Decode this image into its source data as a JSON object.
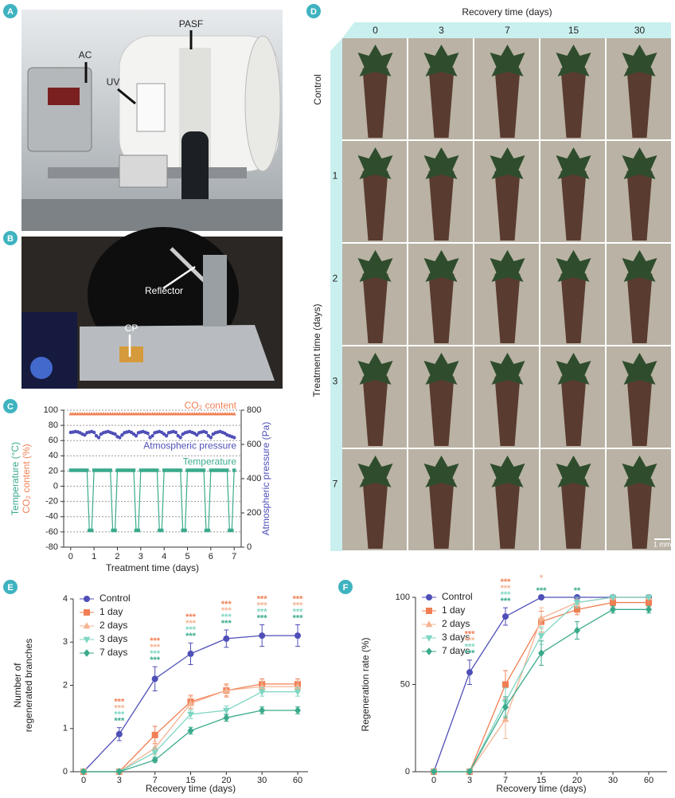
{
  "panel_labels": [
    "A",
    "B",
    "C",
    "D",
    "E",
    "F"
  ],
  "photo_a": {
    "labels": [
      "PASF",
      "AC",
      "UV"
    ]
  },
  "photo_b": {
    "labels": [
      "Reflector",
      "CP"
    ]
  },
  "photo_d": {
    "title": "Recovery time (days)",
    "columns": [
      "0",
      "3",
      "7",
      "15",
      "30"
    ],
    "row_title": "Treatment time (days)",
    "rows": [
      "Control",
      "1",
      "2",
      "3",
      "7"
    ],
    "scale": "1 mm"
  },
  "chart_data": [
    {
      "type": "line",
      "legend": "inline",
      "grid": true,
      "xlabel": "Treatment time (days)",
      "ylabel": [
        "Temperature (°C)",
        "CO₂ content (%)"
      ],
      "ylabel_colors": [
        "#3aaa8c",
        "#f07f54"
      ],
      "y2label": "Atmospheric pressure (Pa)",
      "y2label_color": "#4f4fb8",
      "xlim": [
        -0.3,
        7.3
      ],
      "xticks": [
        0,
        1,
        2,
        3,
        4,
        5,
        6,
        7
      ],
      "ylim": [
        -80,
        100
      ],
      "yticks": [
        -80,
        -60,
        -40,
        -20,
        0,
        20,
        40,
        60,
        80,
        100
      ],
      "y2lim": [
        0,
        800
      ],
      "y2ticks": [
        0,
        200,
        400,
        600,
        800
      ],
      "x": [
        0,
        0.1,
        0.2,
        0.3,
        0.4,
        0.5,
        0.6,
        0.7,
        0.8,
        0.9,
        1,
        1.1,
        1.2,
        1.3,
        1.4,
        1.5,
        1.6,
        1.7,
        1.8,
        1.9,
        2,
        2.1,
        2.2,
        2.3,
        2.4,
        2.5,
        2.6,
        2.7,
        2.8,
        2.9,
        3,
        3.1,
        3.2,
        3.3,
        3.4,
        3.5,
        3.6,
        3.7,
        3.8,
        3.9,
        4,
        4.1,
        4.2,
        4.3,
        4.4,
        4.5,
        4.6,
        4.7,
        4.8,
        4.9,
        5,
        5.1,
        5.2,
        5.3,
        5.4,
        5.5,
        5.6,
        5.7,
        5.8,
        5.9,
        6,
        6.1,
        6.2,
        6.3,
        6.4,
        6.5,
        6.6,
        6.7,
        6.8,
        6.9,
        7
      ],
      "series": [
        {
          "name": "CO₂ content",
          "color": "#f07f54",
          "marker": "triangle",
          "axis": "y",
          "values": [
            95,
            95,
            95,
            95,
            95,
            95,
            95,
            95,
            95,
            95,
            95,
            95,
            95,
            95,
            95,
            95,
            95,
            95,
            95,
            95,
            95,
            95,
            95,
            95,
            95,
            95,
            95,
            95,
            95,
            95,
            95,
            95,
            95,
            95,
            95,
            95,
            95,
            95,
            95,
            95,
            95,
            95,
            95,
            95,
            95,
            95,
            95,
            95,
            95,
            95,
            95,
            95,
            95,
            95,
            95,
            95,
            95,
            95,
            95,
            95,
            95,
            95,
            95,
            95,
            95,
            95,
            95,
            95,
            95,
            95,
            95
          ]
        },
        {
          "name": "Atmospheric pressure",
          "color": "#4f4fb8",
          "marker": "circle",
          "axis": "y2",
          "values": [
            670,
            672,
            675,
            673,
            668,
            660,
            655,
            668,
            672,
            675,
            670,
            650,
            640,
            660,
            668,
            672,
            675,
            670,
            665,
            660,
            645,
            640,
            655,
            668,
            672,
            675,
            670,
            660,
            650,
            668,
            672,
            675,
            670,
            665,
            640,
            650,
            668,
            672,
            675,
            670,
            660,
            650,
            668,
            672,
            675,
            670,
            650,
            640,
            660,
            668,
            672,
            675,
            670,
            665,
            655,
            668,
            672,
            675,
            670,
            650,
            640,
            660,
            668,
            672,
            675,
            670,
            665,
            655,
            650,
            645,
            640
          ]
        },
        {
          "name": "Temperature",
          "color": "#3aaa8c",
          "marker": "square",
          "axis": "y",
          "values": [
            21,
            21,
            21,
            21,
            21,
            21,
            21,
            21,
            -58,
            -58,
            21,
            21,
            21,
            21,
            21,
            21,
            21,
            21,
            -58,
            -58,
            21,
            21,
            21,
            21,
            21,
            21,
            21,
            21,
            -58,
            -58,
            21,
            21,
            21,
            21,
            21,
            21,
            21,
            21,
            -58,
            -58,
            21,
            21,
            21,
            21,
            21,
            21,
            21,
            21,
            -58,
            -58,
            21,
            21,
            21,
            21,
            21,
            21,
            21,
            21,
            -58,
            -58,
            21,
            21,
            21,
            21,
            21,
            21,
            21,
            21,
            -58,
            -58,
            21
          ]
        }
      ]
    },
    {
      "type": "line",
      "legend": "upper left",
      "xlabel": "Recovery time (days)",
      "ylabel": [
        "Number of",
        "regenerated branches"
      ],
      "categories": [
        "0",
        "3",
        "7",
        "15",
        "20",
        "30",
        "60"
      ],
      "ylim": [
        0,
        4
      ],
      "yticks": [
        0,
        1,
        2,
        3,
        4
      ],
      "series": [
        {
          "name": "Control",
          "color": "#4f4fb8",
          "marker": "circle",
          "values": [
            0,
            0.87,
            2.15,
            2.73,
            3.08,
            3.15,
            3.15
          ],
          "errors": [
            0,
            0.15,
            0.28,
            0.25,
            0.2,
            0.25,
            0.25
          ]
        },
        {
          "name": "1 day",
          "color": "#f07f54",
          "marker": "square",
          "values": [
            0,
            0,
            0.85,
            1.62,
            1.88,
            2.03,
            2.03
          ],
          "errors": [
            0,
            0,
            0.2,
            0.15,
            0.15,
            0.12,
            0.12
          ]
        },
        {
          "name": "2 days",
          "color": "#f4b392",
          "marker": "triangle",
          "values": [
            0,
            0,
            0.55,
            1.58,
            1.88,
            1.97,
            1.97
          ],
          "errors": [
            0,
            0,
            0.15,
            0.15,
            0.12,
            0.12,
            0.12
          ]
        },
        {
          "name": "3 days",
          "color": "#7fd6c2",
          "marker": "triangle-down",
          "values": [
            0,
            0,
            0.45,
            1.33,
            1.42,
            1.85,
            1.85
          ],
          "errors": [
            0,
            0,
            0.1,
            0.1,
            0.1,
            0.1,
            0.1
          ]
        },
        {
          "name": "7 days",
          "color": "#3aaa8c",
          "marker": "diamond",
          "values": [
            0,
            0,
            0.27,
            0.95,
            1.25,
            1.42,
            1.42
          ],
          "errors": [
            0,
            0,
            0.05,
            0.08,
            0.08,
            0.08,
            0.08
          ]
        }
      ],
      "stars": [
        null,
        [
          "***",
          "***",
          "***",
          "***"
        ],
        [
          "***",
          "***",
          "***",
          "***"
        ],
        [
          "***",
          "***",
          "***",
          "***"
        ],
        [
          "***",
          "***",
          "***",
          "***"
        ],
        [
          "***",
          "***",
          "***",
          "***"
        ],
        [
          "***",
          "***",
          "***",
          "***"
        ]
      ]
    },
    {
      "type": "line",
      "legend": "upper left",
      "xlabel": "Recovery time (days)",
      "ylabel": [
        "Regeneration rate (%)"
      ],
      "categories": [
        "0",
        "3",
        "7",
        "15",
        "20",
        "30",
        "60"
      ],
      "ylim": [
        0,
        100
      ],
      "yticks": [
        0,
        50,
        100
      ],
      "series": [
        {
          "name": "Control",
          "color": "#4f4fb8",
          "marker": "circle",
          "values": [
            0,
            57,
            89,
            100,
            100,
            100,
            100
          ],
          "errors": [
            0,
            7,
            5,
            0,
            0,
            0,
            0
          ]
        },
        {
          "name": "1 day",
          "color": "#f07f54",
          "marker": "square",
          "values": [
            0,
            0,
            50,
            86,
            93,
            97,
            97
          ],
          "errors": [
            0,
            0,
            8,
            6,
            3,
            3,
            3
          ]
        },
        {
          "name": "2 days",
          "color": "#f4b392",
          "marker": "triangle",
          "values": [
            0,
            0,
            30,
            88,
            97,
            100,
            100
          ],
          "errors": [
            0,
            0,
            11,
            6,
            2,
            0,
            0
          ]
        },
        {
          "name": "3 days",
          "color": "#7fd6c2",
          "marker": "triangle-down",
          "values": [
            0,
            0,
            40,
            78,
            97,
            100,
            100
          ],
          "errors": [
            0,
            0,
            8,
            5,
            3,
            0,
            0
          ]
        },
        {
          "name": "7 days",
          "color": "#3aaa8c",
          "marker": "diamond",
          "values": [
            0,
            0,
            37,
            68,
            81,
            93,
            93
          ],
          "errors": [
            0,
            0,
            6,
            7,
            5,
            2,
            2
          ]
        }
      ],
      "stars": [
        null,
        [
          "***",
          "***",
          "***",
          "***"
        ],
        [
          "***",
          "***",
          "***",
          "***"
        ],
        [
          null,
          "*",
          null,
          "***"
        ],
        [
          null,
          null,
          null,
          "**"
        ],
        null,
        null
      ]
    }
  ]
}
